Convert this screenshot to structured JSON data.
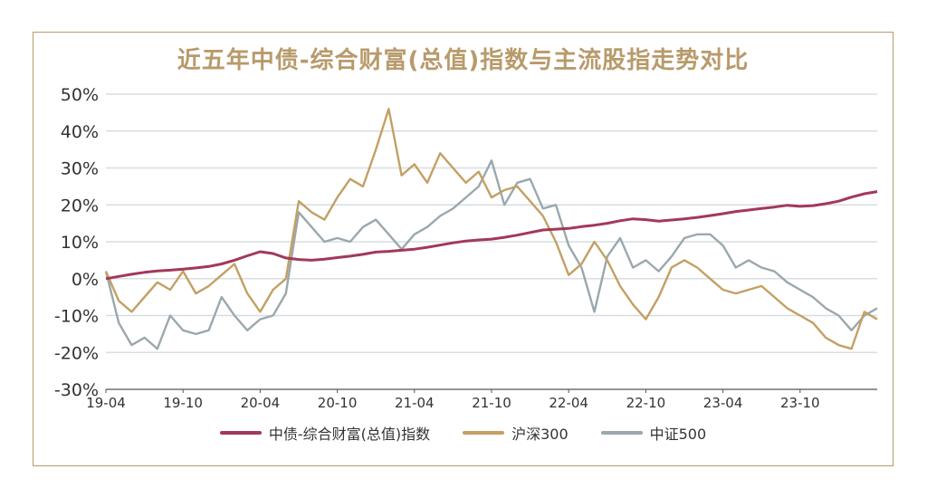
{
  "chart_data": {
    "type": "line",
    "title": "近五年中债-综合财富(总值)指数与主流股指走势对比",
    "xlabel": "",
    "ylabel": "",
    "ylim": [
      -30,
      50
    ],
    "y_ticks": [
      "50%",
      "40%",
      "30%",
      "20%",
      "10%",
      "0%",
      "-10%",
      "-20%",
      "-30%"
    ],
    "y_tick_values": [
      50,
      40,
      30,
      20,
      10,
      0,
      -10,
      -20,
      -30
    ],
    "x_ticks": [
      "19-04",
      "19-10",
      "20-04",
      "20-10",
      "21-04",
      "21-10",
      "22-04",
      "22-10",
      "23-04",
      "23-10"
    ],
    "x_domain": [
      0,
      60
    ],
    "grid": "horizontal",
    "legend_position": "bottom",
    "series": [
      {
        "name": "中债-综合财富(总值)指数",
        "color": "#a3385a",
        "x": [
          0,
          1,
          2,
          3,
          4,
          5,
          6,
          7,
          8,
          9,
          10,
          11,
          12,
          13,
          14,
          15,
          16,
          17,
          18,
          19,
          20,
          21,
          22,
          23,
          24,
          25,
          26,
          27,
          28,
          29,
          30,
          31,
          32,
          33,
          34,
          35,
          36,
          37,
          38,
          39,
          40,
          41,
          42,
          43,
          44,
          45,
          46,
          47,
          48,
          49,
          50,
          51,
          52,
          53,
          54,
          55,
          56,
          57,
          58,
          59,
          60
        ],
        "values": [
          0.0,
          0.6,
          1.2,
          1.7,
          2.1,
          2.3,
          2.6,
          2.9,
          3.3,
          4.0,
          5.0,
          6.2,
          7.3,
          6.8,
          5.6,
          5.2,
          5.0,
          5.3,
          5.7,
          6.1,
          6.6,
          7.2,
          7.4,
          7.7,
          8.0,
          8.5,
          9.1,
          9.7,
          10.2,
          10.5,
          10.7,
          11.2,
          11.8,
          12.5,
          13.2,
          13.4,
          13.6,
          14.1,
          14.5,
          15.0,
          15.7,
          16.2,
          16.0,
          15.6,
          15.9,
          16.2,
          16.6,
          17.1,
          17.6,
          18.2,
          18.6,
          19.0,
          19.4,
          19.9,
          19.6,
          19.8,
          20.3,
          21.0,
          22.1,
          23.0,
          23.6
        ]
      },
      {
        "name": "沪深300",
        "color": "#c3a064",
        "x": [
          0,
          1,
          2,
          3,
          4,
          5,
          6,
          7,
          8,
          9,
          10,
          11,
          12,
          13,
          14,
          15,
          16,
          17,
          18,
          19,
          20,
          21,
          22,
          23,
          24,
          25,
          26,
          27,
          28,
          29,
          30,
          31,
          32,
          33,
          34,
          35,
          36,
          37,
          38,
          39,
          40,
          41,
          42,
          43,
          44,
          45,
          46,
          47,
          48,
          49,
          50,
          51,
          52,
          53,
          54,
          55,
          56,
          57,
          58,
          59,
          60
        ],
        "values": [
          2.0,
          -6.0,
          -9.0,
          -5.0,
          -1.0,
          -3.0,
          2.0,
          -4.0,
          -2.0,
          1.0,
          4.0,
          -4.0,
          -9.0,
          -3.0,
          0.0,
          21.0,
          18.0,
          16.0,
          22.0,
          27.0,
          25.0,
          35.0,
          46.0,
          28.0,
          31.0,
          26.0,
          34.0,
          30.0,
          26.0,
          29.0,
          22.0,
          24.0,
          25.0,
          21.0,
          17.0,
          10.0,
          1.0,
          4.0,
          10.0,
          5.0,
          -2.0,
          -7.0,
          -11.0,
          -5.0,
          3.0,
          5.0,
          3.0,
          0.0,
          -3.0,
          -4.0,
          -3.0,
          -2.0,
          -5.0,
          -8.0,
          -10.0,
          -12.0,
          -16.0,
          -18.0,
          -19.0,
          -9.0,
          -11.0
        ]
      },
      {
        "name": "中证500",
        "color": "#9aa8ae",
        "x": [
          0,
          1,
          2,
          3,
          4,
          5,
          6,
          7,
          8,
          9,
          10,
          11,
          12,
          13,
          14,
          15,
          16,
          17,
          18,
          19,
          20,
          21,
          22,
          23,
          24,
          25,
          26,
          27,
          28,
          29,
          30,
          31,
          32,
          33,
          34,
          35,
          36,
          37,
          38,
          39,
          40,
          41,
          42,
          43,
          44,
          45,
          46,
          47,
          48,
          49,
          50,
          51,
          52,
          53,
          54,
          55,
          56,
          57,
          58,
          59,
          60
        ],
        "values": [
          2.0,
          -12.0,
          -18.0,
          -16.0,
          -19.0,
          -10.0,
          -14.0,
          -15.0,
          -14.0,
          -5.0,
          -10.0,
          -14.0,
          -11.0,
          -10.0,
          -4.0,
          18.0,
          14.0,
          10.0,
          11.0,
          10.0,
          14.0,
          16.0,
          12.0,
          8.0,
          12.0,
          14.0,
          17.0,
          19.0,
          22.0,
          25.0,
          32.0,
          20.0,
          26.0,
          27.0,
          19.0,
          20.0,
          9.0,
          3.0,
          -9.0,
          6.0,
          11.0,
          3.0,
          5.0,
          2.0,
          6.0,
          11.0,
          12.0,
          12.0,
          9.0,
          3.0,
          5.0,
          3.0,
          2.0,
          -1.0,
          -3.0,
          -5.0,
          -8.0,
          -10.0,
          -14.0,
          -10.0,
          -8.0
        ]
      }
    ]
  }
}
